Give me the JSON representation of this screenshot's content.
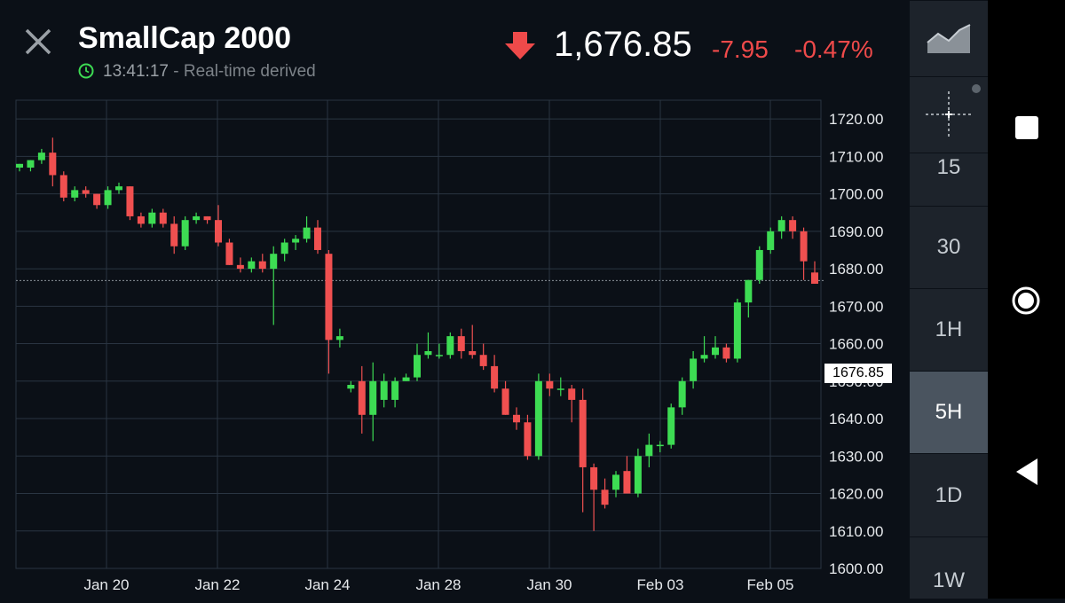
{
  "header": {
    "title": "SmallCap 2000",
    "time": "13:41:17",
    "separator": "-",
    "status": "Real-time derived",
    "price": "1,676.85",
    "change": "-7.95",
    "change_pct": "-0.47%"
  },
  "price_tag": "1676.85",
  "colors": {
    "up": "#3ddc53",
    "down": "#f05050",
    "background": "#0b1017",
    "grid": "#2a3542"
  },
  "icons": [
    "close-icon",
    "clock-icon",
    "down-arrow-icon",
    "chart-type-icon",
    "crosshair-icon",
    "square-icon",
    "circle-icon",
    "back-icon"
  ],
  "sidebar": {
    "intervals": [
      {
        "label": "15",
        "active": false
      },
      {
        "label": "30",
        "active": false
      },
      {
        "label": "1H",
        "active": false
      },
      {
        "label": "5H",
        "active": true
      },
      {
        "label": "1D",
        "active": false
      },
      {
        "label": "1W",
        "active": false
      }
    ]
  },
  "chart_data": {
    "type": "candlestick",
    "yticks": [
      "1720.00",
      "1710.00",
      "1700.00",
      "1690.00",
      "1680.00",
      "1670.00",
      "1660.00",
      "1650.00",
      "1640.00",
      "1630.00",
      "1620.00",
      "1610.00",
      "1600.00"
    ],
    "ylim": [
      1600,
      1725
    ],
    "xticks": [
      "Jan 20",
      "Jan 22",
      "Jan 24",
      "Jan 28",
      "Jan 30",
      "Feb 03",
      "Feb 05"
    ],
    "last_price": 1676.85,
    "candles": [
      [
        1707,
        1708,
        1706,
        1708
      ],
      [
        1707,
        1709,
        1706,
        1709
      ],
      [
        1709,
        1712,
        1708,
        1711
      ],
      [
        1711,
        1715,
        1702,
        1705
      ],
      [
        1705,
        1706,
        1698,
        1699
      ],
      [
        1699,
        1702,
        1698,
        1701
      ],
      [
        1701,
        1702,
        1699,
        1700
      ],
      [
        1700,
        1700,
        1696,
        1697
      ],
      [
        1697,
        1702,
        1696,
        1701
      ],
      [
        1701,
        1703,
        1700,
        1702
      ],
      [
        1702,
        1702,
        1693,
        1694
      ],
      [
        1694,
        1695,
        1691,
        1692
      ],
      [
        1692,
        1696,
        1691,
        1695
      ],
      [
        1695,
        1696,
        1691,
        1692
      ],
      [
        1692,
        1694,
        1684,
        1686
      ],
      [
        1686,
        1694,
        1685,
        1693
      ],
      [
        1693,
        1695,
        1692,
        1694
      ],
      [
        1694,
        1694,
        1692,
        1693
      ],
      [
        1693,
        1697,
        1686,
        1687
      ],
      [
        1687,
        1688,
        1681,
        1681
      ],
      [
        1681,
        1683,
        1679,
        1680
      ],
      [
        1680,
        1683,
        1679,
        1682
      ],
      [
        1682,
        1684,
        1679,
        1680
      ],
      [
        1680,
        1686,
        1665,
        1684
      ],
      [
        1684,
        1688,
        1682,
        1687
      ],
      [
        1687,
        1689,
        1685,
        1688
      ],
      [
        1688,
        1694,
        1687,
        1691
      ],
      [
        1691,
        1693,
        1684,
        1685
      ],
      [
        1684,
        1685,
        1652,
        1661
      ],
      [
        1661,
        1664,
        1659,
        1662
      ],
      [
        1648,
        1650,
        1647,
        1649
      ],
      [
        1650,
        1654,
        1636,
        1641
      ],
      [
        1641,
        1655,
        1634,
        1650
      ],
      [
        1645,
        1652,
        1643,
        1650
      ],
      [
        1645,
        1651,
        1643,
        1650
      ],
      [
        1650,
        1652,
        1650,
        1651
      ],
      [
        1651,
        1660,
        1650,
        1657
      ],
      [
        1657,
        1663,
        1656,
        1658
      ],
      [
        1657,
        1660,
        1656,
        1657
      ],
      [
        1657,
        1663,
        1656,
        1662
      ],
      [
        1662,
        1664,
        1656,
        1658
      ],
      [
        1658,
        1665,
        1656,
        1657
      ],
      [
        1657,
        1660,
        1653,
        1654
      ],
      [
        1654,
        1657,
        1647,
        1648
      ],
      [
        1648,
        1650,
        1641,
        1641
      ],
      [
        1641,
        1643,
        1637,
        1639
      ],
      [
        1639,
        1641,
        1629,
        1630
      ],
      [
        1630,
        1652,
        1629,
        1650
      ],
      [
        1650,
        1652,
        1646,
        1648
      ],
      [
        1648,
        1651,
        1646,
        1648
      ],
      [
        1648,
        1649,
        1639,
        1645
      ],
      [
        1645,
        1648,
        1615,
        1627
      ],
      [
        1627,
        1628,
        1610,
        1621
      ],
      [
        1621,
        1624,
        1616,
        1617
      ],
      [
        1621,
        1626,
        1619,
        1625
      ],
      [
        1626,
        1630,
        1620,
        1620
      ],
      [
        1620,
        1632,
        1619,
        1630
      ],
      [
        1630,
        1636,
        1627,
        1633
      ],
      [
        1633,
        1634,
        1631,
        1633
      ],
      [
        1633,
        1644,
        1632,
        1643
      ],
      [
        1643,
        1651,
        1641,
        1650
      ],
      [
        1650,
        1658,
        1648,
        1656
      ],
      [
        1656,
        1662,
        1655,
        1657
      ],
      [
        1657,
        1662,
        1656,
        1659
      ],
      [
        1659,
        1660,
        1655,
        1656
      ],
      [
        1656,
        1672,
        1655,
        1671
      ],
      [
        1671,
        1677,
        1667,
        1677
      ],
      [
        1677,
        1686,
        1676,
        1685
      ],
      [
        1685,
        1691,
        1684,
        1690
      ],
      [
        1690,
        1694,
        1688,
        1693
      ],
      [
        1693,
        1694,
        1688,
        1690
      ],
      [
        1690,
        1691,
        1677,
        1682
      ],
      [
        1679,
        1682,
        1676,
        1676
      ]
    ]
  }
}
